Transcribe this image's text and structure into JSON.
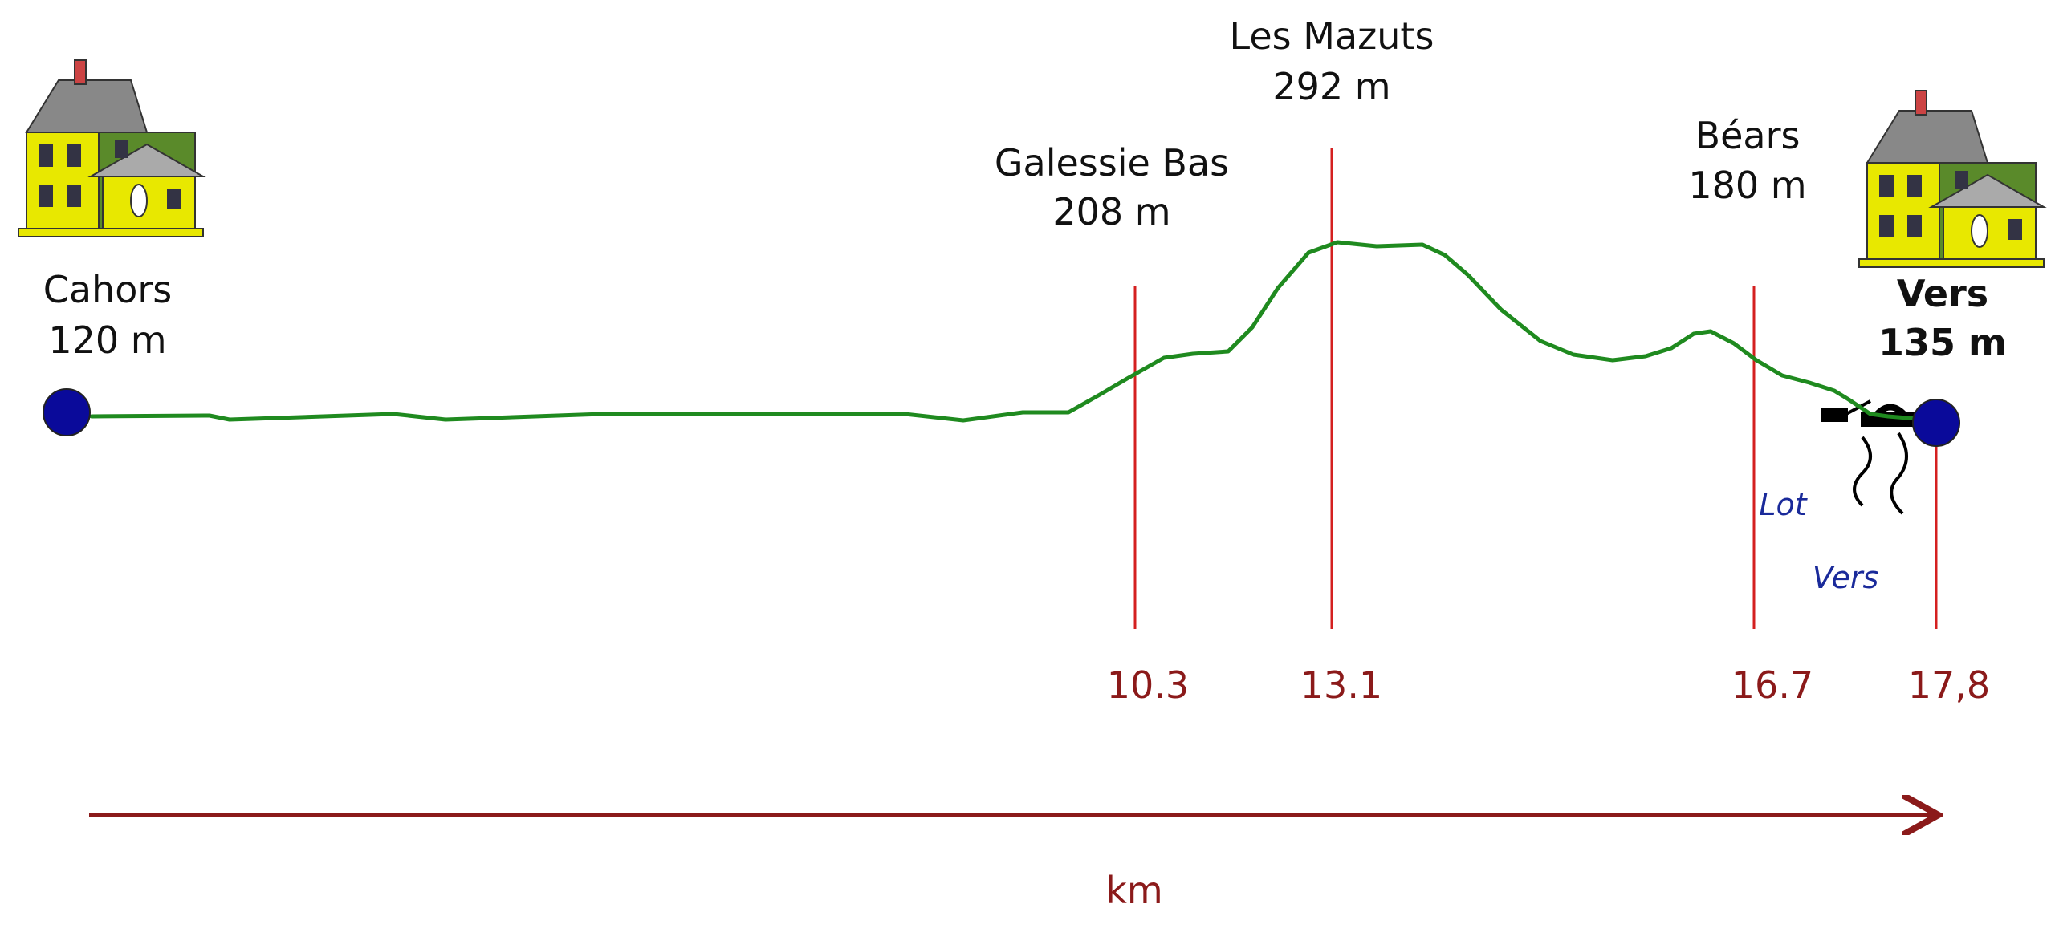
{
  "places": [
    {
      "name": "Cahors",
      "altitude": "120 m"
    },
    {
      "name": "Galessie Bas",
      "altitude": "208 m"
    },
    {
      "name": "Les Mazuts",
      "altitude": "292 m"
    },
    {
      "name": "Béars",
      "altitude": "180 m"
    },
    {
      "name": "Vers",
      "altitude": "135 m"
    }
  ],
  "km_markers": [
    "10.3",
    "13.1",
    "16.7",
    "17,8"
  ],
  "rivers": [
    "Lot",
    "Vers"
  ],
  "axis_label": "km"
}
